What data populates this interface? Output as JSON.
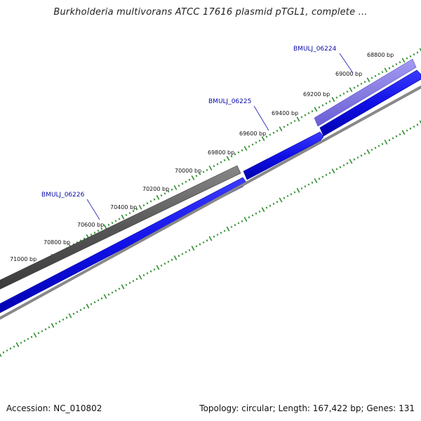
{
  "title": "Burkholderia multivorans ATCC 17616 plasmid pTGL1, complete ...",
  "footer": {
    "accession": "Accession: NC_010802",
    "summary": "Topology: circular; Length: 167,422 bp; Genes: 131"
  },
  "colors": {
    "ruler_ticks": "#2f8f2f",
    "gene_forward": "#1010e6",
    "gene_reverse_highlight": "#7a6ee0",
    "feature_grey": "#666666",
    "backbone_grey": "#8a8a8a",
    "label_blue": "#0a0aa8"
  },
  "ruler": {
    "unit": "bp",
    "labels": [
      "68800 bp",
      "69000 bp",
      "69200 bp",
      "69400 bp",
      "69600 bp",
      "69800 bp",
      "70000 bp",
      "70200 bp",
      "70400 bp",
      "70600 bp",
      "70800 bp",
      "71000 bp"
    ]
  },
  "genes": [
    {
      "name": "BMULJ_06224"
    },
    {
      "name": "BMULJ_06225"
    },
    {
      "name": "BMULJ_06226"
    }
  ]
}
